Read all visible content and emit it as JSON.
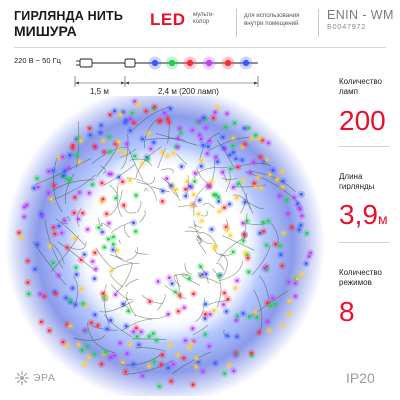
{
  "header": {
    "title_line1": "ГИРЛЯНДА НИТЬ",
    "title_line2": "МИШУРА",
    "led_label": "LED",
    "led_color_note": "мульти-колор",
    "usage_note": "для использования внутри помещений",
    "model": "ENIN - WM",
    "sku": "Б0047972"
  },
  "diagram": {
    "voltage": "220 В ~ 50 Гц",
    "lead_length": "1,5 м",
    "string_length": "2,4  м (200 ламп)"
  },
  "specs": [
    {
      "label": "Количество ламп",
      "value": "200",
      "unit": ""
    },
    {
      "label": "Длина гирлянды",
      "value": "3,9",
      "unit": "м"
    },
    {
      "label": "Количество режимов",
      "value": "8",
      "unit": ""
    }
  ],
  "footer": {
    "brand": "ЭРА",
    "ip_rating": "IP20"
  },
  "colors": {
    "accent": "#e8112d",
    "bulbs": [
      "#3d5bff",
      "#ff2b3a",
      "#1fd14a",
      "#ffcf2e",
      "#c03dff"
    ]
  }
}
